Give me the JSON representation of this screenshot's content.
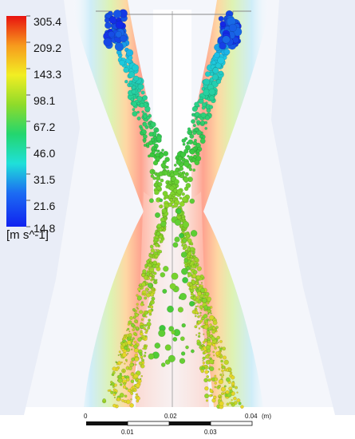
{
  "legend": {
    "labels": [
      "305.4",
      "209.2",
      "143.3",
      "98.1",
      "67.2",
      "46.0",
      "31.5",
      "21.6",
      "14.8"
    ],
    "unit": "[m s^-1]",
    "colors": [
      "#ff0000",
      "#ffa500",
      "#ffff00",
      "#7fff00",
      "#00ff7f",
      "#00ffff",
      "#00bfff",
      "#0000ff"
    ]
  },
  "scale_bar": {
    "top_labels": [
      "0",
      "0.02",
      "0.04",
      "(m)"
    ],
    "bottom_labels": [
      "0.01",
      "0.03"
    ]
  }
}
